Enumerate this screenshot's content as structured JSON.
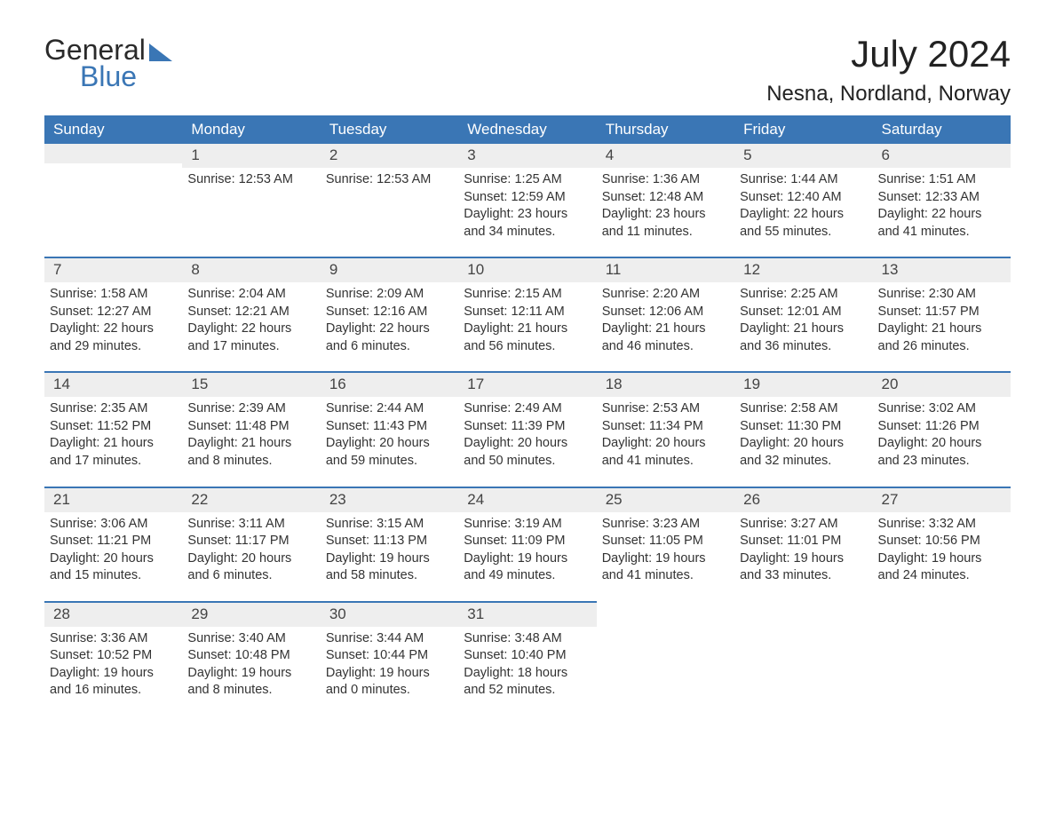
{
  "logo": {
    "word1": "General",
    "word2": "Blue",
    "accent_color": "#3a76b5"
  },
  "title": "July 2024",
  "location": "Nesna, Nordland, Norway",
  "colors": {
    "header_bg": "#3a76b5",
    "header_fg": "#ffffff",
    "daynum_bg": "#eeeeee",
    "row_divider": "#3a76b5",
    "text": "#333333",
    "background": "#ffffff"
  },
  "weekdays": [
    "Sunday",
    "Monday",
    "Tuesday",
    "Wednesday",
    "Thursday",
    "Friday",
    "Saturday"
  ],
  "weeks": [
    [
      {
        "day": "",
        "lines": []
      },
      {
        "day": "1",
        "lines": [
          "Sunrise: 12:53 AM"
        ]
      },
      {
        "day": "2",
        "lines": [
          "Sunrise: 12:53 AM"
        ]
      },
      {
        "day": "3",
        "lines": [
          "Sunrise: 1:25 AM",
          "Sunset: 12:59 AM",
          "Daylight: 23 hours",
          "and 34 minutes."
        ]
      },
      {
        "day": "4",
        "lines": [
          "Sunrise: 1:36 AM",
          "Sunset: 12:48 AM",
          "Daylight: 23 hours",
          "and 11 minutes."
        ]
      },
      {
        "day": "5",
        "lines": [
          "Sunrise: 1:44 AM",
          "Sunset: 12:40 AM",
          "Daylight: 22 hours",
          "and 55 minutes."
        ]
      },
      {
        "day": "6",
        "lines": [
          "Sunrise: 1:51 AM",
          "Sunset: 12:33 AM",
          "Daylight: 22 hours",
          "and 41 minutes."
        ]
      }
    ],
    [
      {
        "day": "7",
        "lines": [
          "Sunrise: 1:58 AM",
          "Sunset: 12:27 AM",
          "Daylight: 22 hours",
          "and 29 minutes."
        ]
      },
      {
        "day": "8",
        "lines": [
          "Sunrise: 2:04 AM",
          "Sunset: 12:21 AM",
          "Daylight: 22 hours",
          "and 17 minutes."
        ]
      },
      {
        "day": "9",
        "lines": [
          "Sunrise: 2:09 AM",
          "Sunset: 12:16 AM",
          "Daylight: 22 hours",
          "and 6 minutes."
        ]
      },
      {
        "day": "10",
        "lines": [
          "Sunrise: 2:15 AM",
          "Sunset: 12:11 AM",
          "Daylight: 21 hours",
          "and 56 minutes."
        ]
      },
      {
        "day": "11",
        "lines": [
          "Sunrise: 2:20 AM",
          "Sunset: 12:06 AM",
          "Daylight: 21 hours",
          "and 46 minutes."
        ]
      },
      {
        "day": "12",
        "lines": [
          "Sunrise: 2:25 AM",
          "Sunset: 12:01 AM",
          "Daylight: 21 hours",
          "and 36 minutes."
        ]
      },
      {
        "day": "13",
        "lines": [
          "Sunrise: 2:30 AM",
          "Sunset: 11:57 PM",
          "Daylight: 21 hours",
          "and 26 minutes."
        ]
      }
    ],
    [
      {
        "day": "14",
        "lines": [
          "Sunrise: 2:35 AM",
          "Sunset: 11:52 PM",
          "Daylight: 21 hours",
          "and 17 minutes."
        ]
      },
      {
        "day": "15",
        "lines": [
          "Sunrise: 2:39 AM",
          "Sunset: 11:48 PM",
          "Daylight: 21 hours",
          "and 8 minutes."
        ]
      },
      {
        "day": "16",
        "lines": [
          "Sunrise: 2:44 AM",
          "Sunset: 11:43 PM",
          "Daylight: 20 hours",
          "and 59 minutes."
        ]
      },
      {
        "day": "17",
        "lines": [
          "Sunrise: 2:49 AM",
          "Sunset: 11:39 PM",
          "Daylight: 20 hours",
          "and 50 minutes."
        ]
      },
      {
        "day": "18",
        "lines": [
          "Sunrise: 2:53 AM",
          "Sunset: 11:34 PM",
          "Daylight: 20 hours",
          "and 41 minutes."
        ]
      },
      {
        "day": "19",
        "lines": [
          "Sunrise: 2:58 AM",
          "Sunset: 11:30 PM",
          "Daylight: 20 hours",
          "and 32 minutes."
        ]
      },
      {
        "day": "20",
        "lines": [
          "Sunrise: 3:02 AM",
          "Sunset: 11:26 PM",
          "Daylight: 20 hours",
          "and 23 minutes."
        ]
      }
    ],
    [
      {
        "day": "21",
        "lines": [
          "Sunrise: 3:06 AM",
          "Sunset: 11:21 PM",
          "Daylight: 20 hours",
          "and 15 minutes."
        ]
      },
      {
        "day": "22",
        "lines": [
          "Sunrise: 3:11 AM",
          "Sunset: 11:17 PM",
          "Daylight: 20 hours",
          "and 6 minutes."
        ]
      },
      {
        "day": "23",
        "lines": [
          "Sunrise: 3:15 AM",
          "Sunset: 11:13 PM",
          "Daylight: 19 hours",
          "and 58 minutes."
        ]
      },
      {
        "day": "24",
        "lines": [
          "Sunrise: 3:19 AM",
          "Sunset: 11:09 PM",
          "Daylight: 19 hours",
          "and 49 minutes."
        ]
      },
      {
        "day": "25",
        "lines": [
          "Sunrise: 3:23 AM",
          "Sunset: 11:05 PM",
          "Daylight: 19 hours",
          "and 41 minutes."
        ]
      },
      {
        "day": "26",
        "lines": [
          "Sunrise: 3:27 AM",
          "Sunset: 11:01 PM",
          "Daylight: 19 hours",
          "and 33 minutes."
        ]
      },
      {
        "day": "27",
        "lines": [
          "Sunrise: 3:32 AM",
          "Sunset: 10:56 PM",
          "Daylight: 19 hours",
          "and 24 minutes."
        ]
      }
    ],
    [
      {
        "day": "28",
        "lines": [
          "Sunrise: 3:36 AM",
          "Sunset: 10:52 PM",
          "Daylight: 19 hours",
          "and 16 minutes."
        ]
      },
      {
        "day": "29",
        "lines": [
          "Sunrise: 3:40 AM",
          "Sunset: 10:48 PM",
          "Daylight: 19 hours",
          "and 8 minutes."
        ]
      },
      {
        "day": "30",
        "lines": [
          "Sunrise: 3:44 AM",
          "Sunset: 10:44 PM",
          "Daylight: 19 hours",
          "and 0 minutes."
        ]
      },
      {
        "day": "31",
        "lines": [
          "Sunrise: 3:48 AM",
          "Sunset: 10:40 PM",
          "Daylight: 18 hours",
          "and 52 minutes."
        ]
      },
      {
        "day": "",
        "lines": [],
        "blank": true
      },
      {
        "day": "",
        "lines": [],
        "blank": true
      },
      {
        "day": "",
        "lines": [],
        "blank": true
      }
    ]
  ]
}
